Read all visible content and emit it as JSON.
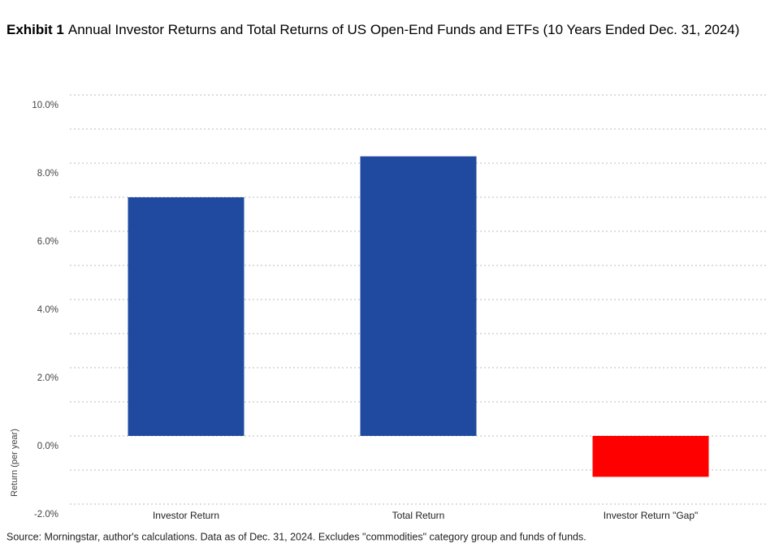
{
  "chart_data": {
    "type": "bar",
    "title_label": "Exhibit 1",
    "title": "Annual Investor Returns and Total Returns of US Open-End Funds and ETFs (10 Years Ended Dec. 31, 2024)",
    "y_label": "Return (per year)",
    "source": "Source: Morningstar, author's calculations. Data as of Dec. 31, 2024. Excludes \"commodities\" category group and funds of funds.",
    "categories": [
      "Investor Return",
      "Total Return",
      "Investor Return \"Gap\""
    ],
    "values": [
      7.0,
      8.2,
      -1.2
    ],
    "colors": [
      "#1f4aa0",
      "#1f4aa0",
      "#ff0000"
    ],
    "ylim": [
      -2,
      10
    ],
    "yticks": [
      {
        "value": -2,
        "label": "-2.0%"
      },
      {
        "value": 0,
        "label": "0.0%"
      },
      {
        "value": 2,
        "label": "2.0%"
      },
      {
        "value": 4,
        "label": "4.0%"
      },
      {
        "value": 6,
        "label": "6.0%"
      },
      {
        "value": 8,
        "label": "8.0%"
      },
      {
        "value": 10,
        "label": "10.0%"
      }
    ],
    "minor_yticks": [
      -1,
      1,
      3,
      5,
      7,
      9
    ],
    "grid": true
  }
}
